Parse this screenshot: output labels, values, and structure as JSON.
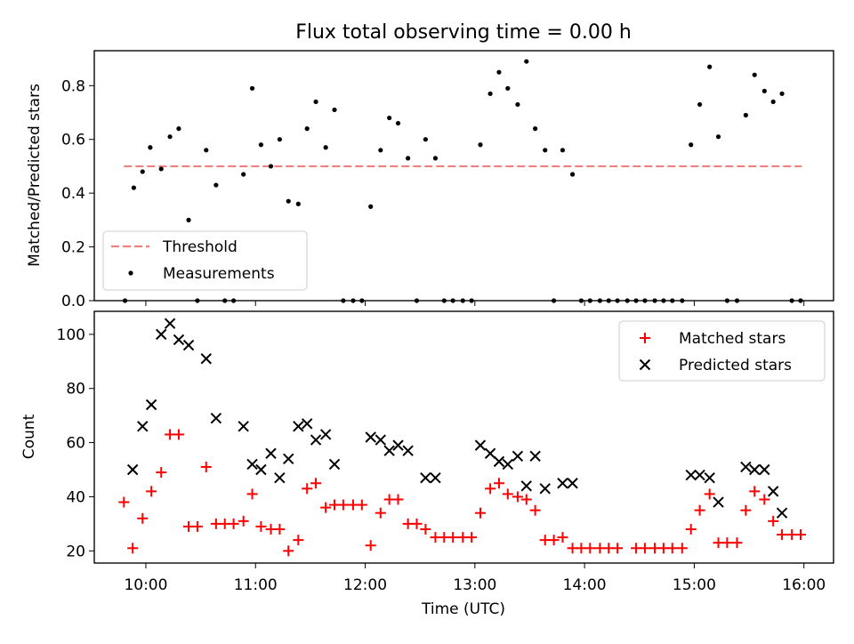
{
  "title": "Flux total observing time = 0.00 h",
  "chart_data": [
    {
      "type": "scatter",
      "title": "Flux total observing time = 0.00 h",
      "xlabel": "",
      "ylabel": "Matched/Predicted stars",
      "xlim": [
        9.53,
        16.27
      ],
      "ylim": [
        0,
        0.93
      ],
      "xticks": [
        "10:00",
        "11:00",
        "12:00",
        "13:00",
        "14:00",
        "15:00",
        "16:00"
      ],
      "xtick_values": [
        10,
        11,
        12,
        13,
        14,
        15,
        16
      ],
      "yticks": [
        0.0,
        0.2,
        0.4,
        0.6,
        0.8
      ],
      "ytick_labels": [
        "0.0",
        "0.2",
        "0.4",
        "0.6",
        "0.8"
      ],
      "legend_position": "lower-left",
      "threshold": {
        "name": "Threshold",
        "y": 0.5,
        "x_range": [
          9.8,
          15.98
        ],
        "color": "#f08080",
        "style": "dashed"
      },
      "series": [
        {
          "name": "Measurements",
          "marker": "dot",
          "color": "#000000",
          "points": [
            [
              9.81,
              0.0
            ],
            [
              9.89,
              0.42
            ],
            [
              9.97,
              0.48
            ],
            [
              10.04,
              0.57
            ],
            [
              10.14,
              0.49
            ],
            [
              10.22,
              0.61
            ],
            [
              10.3,
              0.64
            ],
            [
              10.39,
              0.3
            ],
            [
              10.47,
              0.0
            ],
            [
              10.55,
              0.56
            ],
            [
              10.64,
              0.43
            ],
            [
              10.72,
              0.0
            ],
            [
              10.8,
              0.0
            ],
            [
              10.89,
              0.47
            ],
            [
              10.97,
              0.79
            ],
            [
              11.05,
              0.58
            ],
            [
              11.14,
              0.5
            ],
            [
              11.22,
              0.6
            ],
            [
              11.3,
              0.37
            ],
            [
              11.39,
              0.36
            ],
            [
              11.47,
              0.64
            ],
            [
              11.55,
              0.74
            ],
            [
              11.64,
              0.57
            ],
            [
              11.72,
              0.71
            ],
            [
              11.8,
              0.0
            ],
            [
              11.89,
              0.0
            ],
            [
              11.97,
              0.0
            ],
            [
              12.05,
              0.35
            ],
            [
              12.14,
              0.56
            ],
            [
              12.22,
              0.68
            ],
            [
              12.3,
              0.66
            ],
            [
              12.39,
              0.53
            ],
            [
              12.47,
              0.0
            ],
            [
              12.55,
              0.6
            ],
            [
              12.64,
              0.53
            ],
            [
              12.72,
              0.0
            ],
            [
              12.8,
              0.0
            ],
            [
              12.89,
              0.0
            ],
            [
              12.97,
              0.0
            ],
            [
              13.05,
              0.58
            ],
            [
              13.14,
              0.77
            ],
            [
              13.22,
              0.85
            ],
            [
              13.3,
              0.79
            ],
            [
              13.39,
              0.73
            ],
            [
              13.47,
              0.89
            ],
            [
              13.55,
              0.64
            ],
            [
              13.64,
              0.56
            ],
            [
              13.72,
              0.0
            ],
            [
              13.8,
              0.56
            ],
            [
              13.89,
              0.47
            ],
            [
              13.97,
              0.0
            ],
            [
              14.05,
              0.0
            ],
            [
              14.14,
              0.0
            ],
            [
              14.22,
              0.0
            ],
            [
              14.3,
              0.0
            ],
            [
              14.39,
              0.0
            ],
            [
              14.47,
              0.0
            ],
            [
              14.55,
              0.0
            ],
            [
              14.64,
              0.0
            ],
            [
              14.72,
              0.0
            ],
            [
              14.8,
              0.0
            ],
            [
              14.89,
              0.0
            ],
            [
              14.97,
              0.58
            ],
            [
              15.05,
              0.73
            ],
            [
              15.14,
              0.87
            ],
            [
              15.22,
              0.61
            ],
            [
              15.3,
              0.0
            ],
            [
              15.39,
              0.0
            ],
            [
              15.47,
              0.69
            ],
            [
              15.55,
              0.84
            ],
            [
              15.64,
              0.78
            ],
            [
              15.72,
              0.74
            ],
            [
              15.8,
              0.77
            ],
            [
              15.89,
              0.0
            ],
            [
              15.97,
              0.0
            ]
          ]
        }
      ]
    },
    {
      "type": "scatter",
      "title": "",
      "xlabel": "Time (UTC)",
      "ylabel": "Count",
      "xlim": [
        9.53,
        16.27
      ],
      "ylim": [
        15.5,
        108.5
      ],
      "xticks": [
        "10:00",
        "11:00",
        "12:00",
        "13:00",
        "14:00",
        "15:00",
        "16:00"
      ],
      "xtick_values": [
        10,
        11,
        12,
        13,
        14,
        15,
        16
      ],
      "yticks": [
        20,
        40,
        60,
        80,
        100
      ],
      "ytick_labels": [
        "20",
        "40",
        "60",
        "80",
        "100"
      ],
      "legend_position": "upper-right",
      "series": [
        {
          "name": "Matched stars",
          "marker": "plus",
          "color": "#ff0000",
          "points": [
            [
              9.8,
              38
            ],
            [
              9.88,
              21
            ],
            [
              9.97,
              32
            ],
            [
              10.05,
              42
            ],
            [
              10.14,
              49
            ],
            [
              10.22,
              63
            ],
            [
              10.3,
              63
            ],
            [
              10.39,
              29
            ],
            [
              10.47,
              29
            ],
            [
              10.55,
              51
            ],
            [
              10.64,
              30
            ],
            [
              10.72,
              30
            ],
            [
              10.8,
              30
            ],
            [
              10.89,
              31
            ],
            [
              10.97,
              41
            ],
            [
              11.05,
              29
            ],
            [
              11.14,
              28
            ],
            [
              11.22,
              28
            ],
            [
              11.3,
              20
            ],
            [
              11.39,
              24
            ],
            [
              11.47,
              43
            ],
            [
              11.55,
              45
            ],
            [
              11.64,
              36
            ],
            [
              11.72,
              37
            ],
            [
              11.8,
              37
            ],
            [
              11.89,
              37
            ],
            [
              11.97,
              37
            ],
            [
              12.05,
              22
            ],
            [
              12.14,
              34
            ],
            [
              12.22,
              39
            ],
            [
              12.3,
              39
            ],
            [
              12.39,
              30
            ],
            [
              12.47,
              30
            ],
            [
              12.55,
              28
            ],
            [
              12.64,
              25
            ],
            [
              12.72,
              25
            ],
            [
              12.8,
              25
            ],
            [
              12.89,
              25
            ],
            [
              12.97,
              25
            ],
            [
              13.05,
              34
            ],
            [
              13.14,
              43
            ],
            [
              13.22,
              45
            ],
            [
              13.3,
              41
            ],
            [
              13.39,
              40
            ],
            [
              13.47,
              39
            ],
            [
              13.55,
              35
            ],
            [
              13.64,
              24
            ],
            [
              13.72,
              24
            ],
            [
              13.8,
              25
            ],
            [
              13.89,
              21
            ],
            [
              13.97,
              21
            ],
            [
              14.05,
              21
            ],
            [
              14.14,
              21
            ],
            [
              14.22,
              21
            ],
            [
              14.3,
              21
            ],
            [
              14.47,
              21
            ],
            [
              14.55,
              21
            ],
            [
              14.64,
              21
            ],
            [
              14.72,
              21
            ],
            [
              14.8,
              21
            ],
            [
              14.89,
              21
            ],
            [
              14.97,
              28
            ],
            [
              15.05,
              35
            ],
            [
              15.14,
              41
            ],
            [
              15.22,
              23
            ],
            [
              15.3,
              23
            ],
            [
              15.39,
              23
            ],
            [
              15.47,
              35
            ],
            [
              15.55,
              42
            ],
            [
              15.64,
              39
            ],
            [
              15.72,
              31
            ],
            [
              15.8,
              26
            ],
            [
              15.89,
              26
            ],
            [
              15.97,
              26
            ]
          ]
        },
        {
          "name": "Predicted stars",
          "marker": "x",
          "color": "#000000",
          "points": [
            [
              9.88,
              50
            ],
            [
              9.97,
              66
            ],
            [
              10.05,
              74
            ],
            [
              10.14,
              100
            ],
            [
              10.22,
              104
            ],
            [
              10.3,
              98
            ],
            [
              10.39,
              96
            ],
            [
              10.55,
              91
            ],
            [
              10.64,
              69
            ],
            [
              10.89,
              66
            ],
            [
              10.97,
              52
            ],
            [
              11.05,
              50
            ],
            [
              11.14,
              56
            ],
            [
              11.22,
              47
            ],
            [
              11.3,
              54
            ],
            [
              11.39,
              66
            ],
            [
              11.47,
              67
            ],
            [
              11.55,
              61
            ],
            [
              11.64,
              63
            ],
            [
              11.72,
              52
            ],
            [
              12.05,
              62
            ],
            [
              12.14,
              61
            ],
            [
              12.22,
              57
            ],
            [
              12.3,
              59
            ],
            [
              12.39,
              57
            ],
            [
              12.55,
              47
            ],
            [
              12.64,
              47
            ],
            [
              13.05,
              59
            ],
            [
              13.14,
              56
            ],
            [
              13.22,
              53
            ],
            [
              13.3,
              52
            ],
            [
              13.39,
              55
            ],
            [
              13.47,
              44
            ],
            [
              13.55,
              55
            ],
            [
              13.64,
              43
            ],
            [
              13.8,
              45
            ],
            [
              13.89,
              45
            ],
            [
              14.97,
              48
            ],
            [
              15.05,
              48
            ],
            [
              15.14,
              47
            ],
            [
              15.22,
              38
            ],
            [
              15.47,
              51
            ],
            [
              15.55,
              50
            ],
            [
              15.64,
              50
            ],
            [
              15.72,
              42
            ],
            [
              15.8,
              34
            ]
          ]
        }
      ]
    }
  ]
}
